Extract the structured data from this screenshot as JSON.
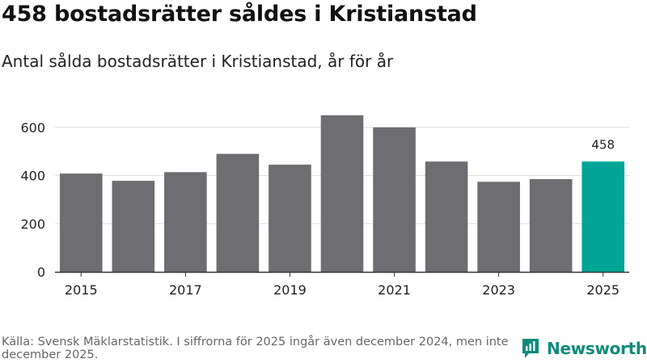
{
  "title": "458 bostadsrätter såldes i Kristianstad",
  "subtitle": "Antal sålda bostadsrätter i Kristianstad, år för år",
  "footer": "Källa: Svensk Mäklarstatistik. I siffrorna för 2025 ingår även december 2024, men inte december 2025.",
  "brand": {
    "name": "Newsworthy",
    "icon": "newsworthy-logo-icon"
  },
  "colors": {
    "bar": "#6e6d72",
    "highlight": "#00a596",
    "grid": "#dddddd",
    "axis": "#333333",
    "brand": "#0f8a7a"
  },
  "chart_data": {
    "type": "bar",
    "title": "Antal sålda bostadsrätter i Kristianstad, år för år",
    "xlabel": "",
    "ylabel": "",
    "categories": [
      "2015",
      "2016",
      "2017",
      "2018",
      "2019",
      "2020",
      "2021",
      "2022",
      "2023",
      "2024",
      "2025"
    ],
    "values": [
      408,
      378,
      414,
      490,
      445,
      650,
      600,
      458,
      374,
      385,
      458
    ],
    "x_tick_labels": [
      "2015",
      "2017",
      "2019",
      "2021",
      "2023",
      "2025"
    ],
    "y_ticks": [
      0,
      200,
      400,
      600
    ],
    "ylim": [
      0,
      700
    ],
    "highlight_index": 10,
    "data_labels": [
      {
        "index": 10,
        "text": "458"
      }
    ],
    "grid": true,
    "legend": "none"
  }
}
